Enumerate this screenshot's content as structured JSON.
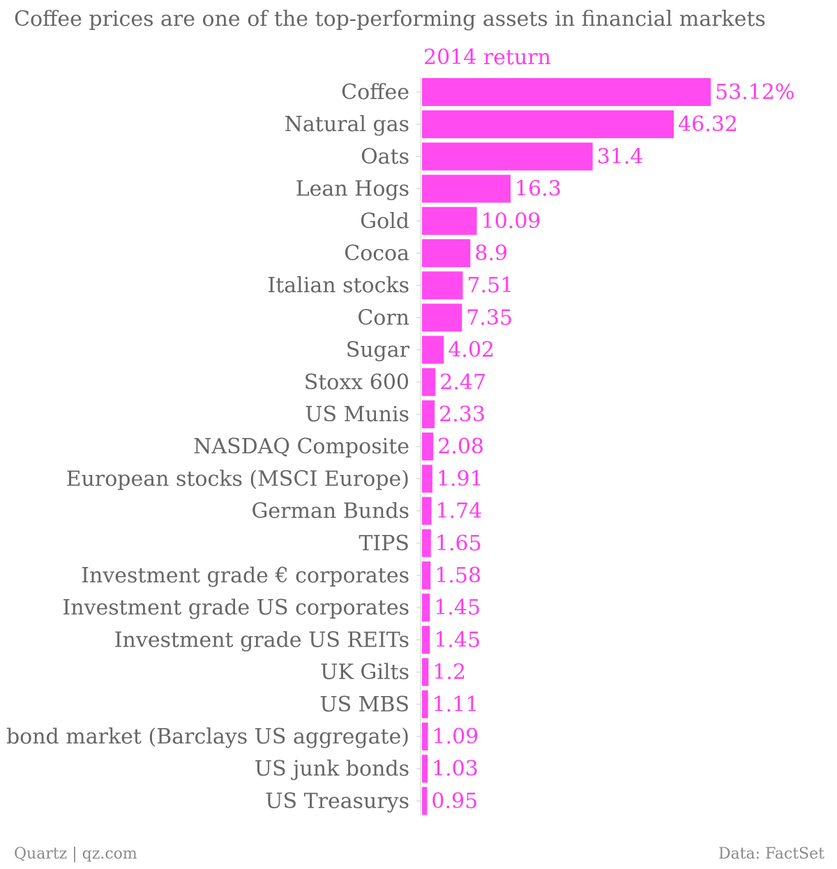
{
  "header": {
    "title": "Coffee prices are one of the top-performing assets in financial markets"
  },
  "footer": {
    "source": "Quartz | qz.com",
    "data_credit": "Data: FactSet"
  },
  "colors": {
    "bar": "#ff4bf0",
    "label_text": "#666666",
    "value_text": "#ff3cec",
    "tick": "#cccccc",
    "footer_text": "#8a8a8a"
  },
  "chart_data": {
    "type": "bar",
    "orientation": "horizontal",
    "title": "Coffee prices are one of the top-performing assets in financial markets",
    "series": [
      {
        "name": "2014 return",
        "values": [
          53.12,
          46.32,
          31.4,
          16.3,
          10.09,
          8.9,
          7.51,
          7.35,
          4.02,
          2.47,
          2.33,
          2.08,
          1.91,
          1.74,
          1.65,
          1.58,
          1.45,
          1.45,
          1.2,
          1.11,
          1.09,
          1.03,
          0.95
        ]
      }
    ],
    "categories": [
      "Coffee",
      "Natural gas",
      "Oats",
      "Lean Hogs",
      "Gold",
      "Cocoa",
      "Italian stocks",
      "Corn",
      "Sugar",
      "Stoxx 600",
      "US Munis",
      "NASDAQ Composite",
      "European stocks (MSCI Europe)",
      "German Bunds",
      "TIPS",
      "Investment grade € corporates",
      "Investment grade US corporates",
      "Investment grade US REITs",
      "UK Gilts",
      "US MBS",
      "US bond market (Barclays US aggregate)",
      "US junk bonds",
      "US Treasurys"
    ],
    "value_labels": [
      "53.12%",
      "46.32",
      "31.4",
      "16.3",
      "10.09",
      "8.9",
      "7.51",
      "7.35",
      "4.02",
      "2.47",
      "2.33",
      "2.08",
      "1.91",
      "1.74",
      "1.65",
      "1.58",
      "1.45",
      "1.45",
      "1.2",
      "1.11",
      "1.09",
      "1.03",
      "0.95"
    ],
    "xlim": [
      0,
      53.12
    ],
    "grid": false,
    "legend": "top"
  }
}
